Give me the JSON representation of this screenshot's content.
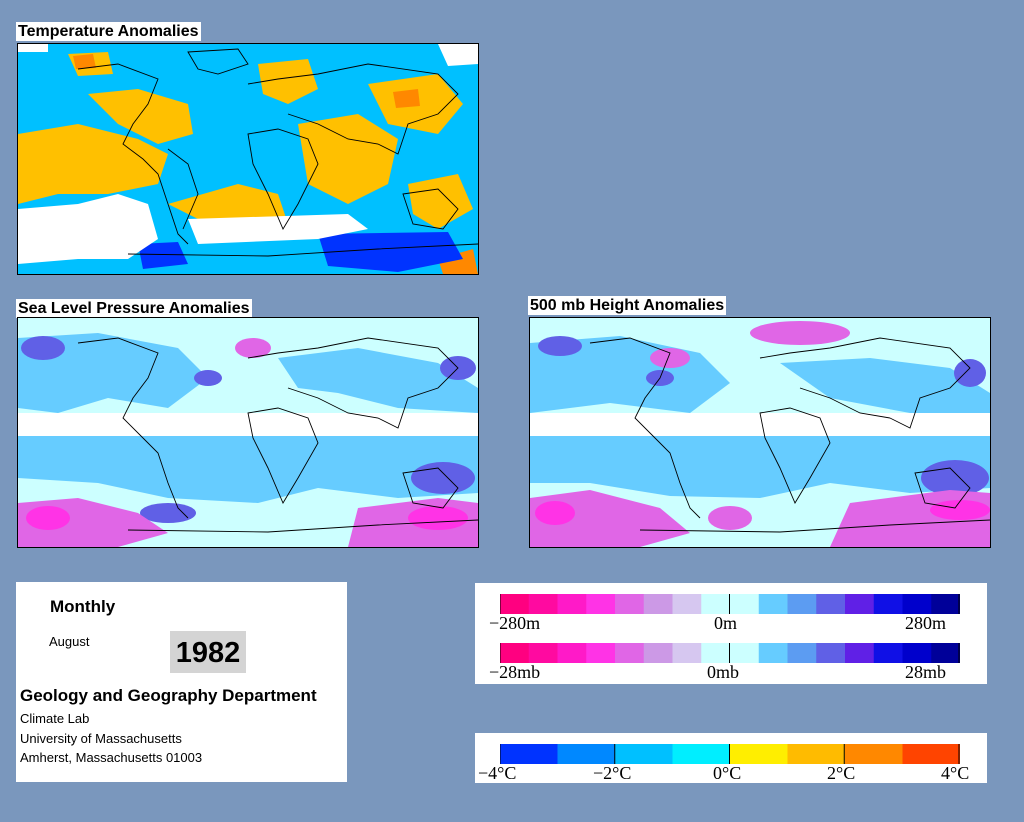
{
  "panels": {
    "temperature": {
      "title": "Temperature Anomalies"
    },
    "slp": {
      "title": "Sea Level Pressure Anomalies"
    },
    "height500": {
      "title": "500 mb Height Anomalies"
    }
  },
  "info": {
    "heading": "Monthly",
    "month": "August",
    "year": "1982",
    "department": "Geology and Geography Department",
    "lab": "Climate Lab",
    "university": "University of Massachusetts",
    "address": "Amherst, Massachusetts 01003"
  },
  "legends": {
    "height": {
      "labels": [
        "−280m",
        "0m",
        "280m"
      ],
      "colors": [
        "#ff0080",
        "#ff0aa0",
        "#ff1ac8",
        "#ff33e6",
        "#e066e6",
        "#cc99e6",
        "#d6c7f0",
        "#ccffff",
        "#ccffff",
        "#66ccff",
        "#5c9cf2",
        "#6060e6",
        "#6020e6",
        "#1010e6",
        "#0000cc",
        "#000099"
      ]
    },
    "pressure": {
      "labels": [
        "−28mb",
        "0mb",
        "28mb"
      ],
      "colors": [
        "#ff0080",
        "#ff0aa0",
        "#ff1ac8",
        "#ff33e6",
        "#e066e6",
        "#cc99e6",
        "#d6c7f0",
        "#ccffff",
        "#ccffff",
        "#66ccff",
        "#5c9cf2",
        "#6060e6",
        "#6020e6",
        "#1010e6",
        "#0000cc",
        "#000099"
      ]
    },
    "temperature": {
      "labels": [
        "−4°C",
        "−2°C",
        "0°C",
        "2°C",
        "4°C"
      ],
      "colors": [
        "#0033ff",
        "#0088ff",
        "#00c0ff",
        "#00eeff",
        "#ffee00",
        "#ffbb00",
        "#ff8800",
        "#ff4400"
      ]
    }
  },
  "map_colors": {
    "warm": "#ffc000",
    "cool": "#00c0ff",
    "neutral_cyan": "#ccffff",
    "light_blue": "#66ccff",
    "mid_blue": "#6060e6",
    "violet": "#e066e6",
    "pink": "#ff33e6",
    "no_data": "#ffffff"
  }
}
